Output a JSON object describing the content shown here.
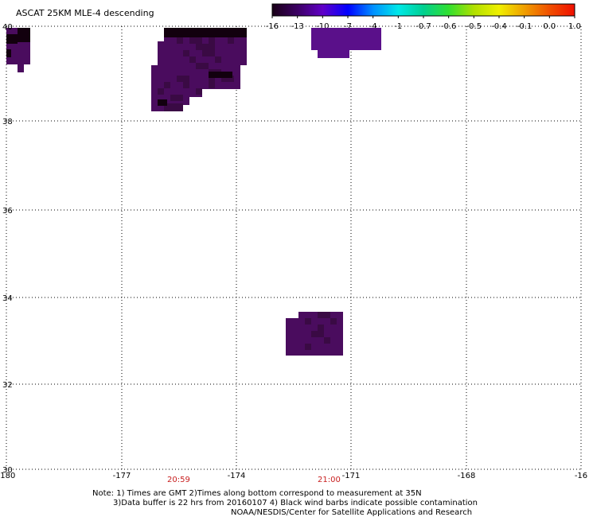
{
  "title": "ASCAT 25KM MLE-4 descending",
  "colorbar": {
    "labels": [
      "-16",
      "-13",
      "-10",
      "-7",
      "-4",
      "-1",
      "-0.7",
      "-0.6",
      "-0.5",
      "-0.4",
      "-0.1",
      "0.0",
      "1.0"
    ],
    "colors": [
      "#1a0018",
      "#3c0064",
      "#6000c8",
      "#0000ff",
      "#0090ff",
      "#00e8e8",
      "#00d090",
      "#30e030",
      "#b0e000",
      "#f0f000",
      "#f0a000",
      "#f05000",
      "#f01000"
    ]
  },
  "axes": {
    "x_labels": [
      "-180",
      "-177",
      "-174",
      "-171",
      "-168",
      "-16"
    ],
    "y_labels": [
      "40",
      "38",
      "36",
      "34",
      "32",
      "30"
    ]
  },
  "times": {
    "t1": "20:59",
    "t2": "21:00"
  },
  "notes": {
    "line1": "Note: 1) Times are GMT 2)Times along bottom correspond to measurement at 35N",
    "line2": "3)Data buffer is 22 hrs from 20160107 4) Black wind barbs indicate possible contamination",
    "line3": "NOAA/NESDIS/Center for Satellite Applications and Research"
  },
  "colors": {
    "purple_dark": "#3a0a44",
    "purple_mid": "#4a0c5e",
    "purple_light": "#5a108a",
    "black_cell": "#12000e",
    "time_red": "#c81e1e"
  }
}
